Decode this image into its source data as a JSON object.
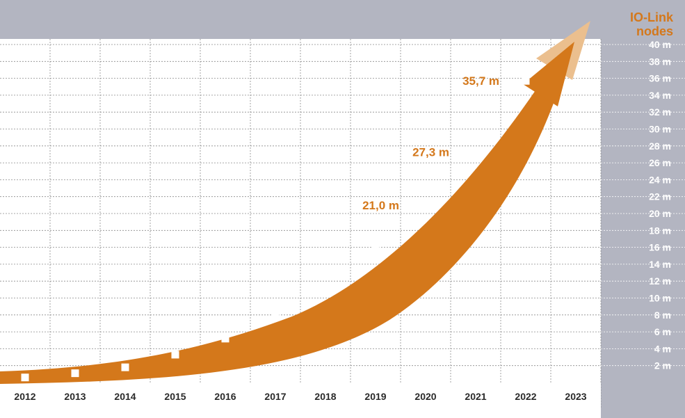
{
  "chart_data": {
    "type": "line",
    "title_lines": [
      "IO-Link",
      "nodes"
    ],
    "x": [
      "2012",
      "2013",
      "2014",
      "2015",
      "2016",
      "2017",
      "2018",
      "2019",
      "2020",
      "2021",
      "2022",
      "2023"
    ],
    "ylim": [
      0,
      40
    ],
    "y_ticks": [
      "2 m",
      "4 m",
      "6 m",
      "8 m",
      "10 m",
      "12 m",
      "14 m",
      "16 m",
      "18 m",
      "20 m",
      "22 m",
      "24 m",
      "26 m",
      "28 m",
      "30 m",
      "32 m",
      "34 m",
      "36 m",
      "38 m",
      "40 m"
    ],
    "series": [
      {
        "points": [
          {
            "x": "2012",
            "y": 0.6
          },
          {
            "x": "2013",
            "y": 1.1
          },
          {
            "x": "2014",
            "y": 1.8
          },
          {
            "x": "2015",
            "y": 3.3
          },
          {
            "x": "2016",
            "y": 5.2
          },
          {
            "x": "2017",
            "y": 8.1
          },
          {
            "x": "2018",
            "y": 11.3
          },
          {
            "x": "2019",
            "y": 16.1
          },
          {
            "x": "2020",
            "y": 21.0
          },
          {
            "x": "2021",
            "y": 27.3
          },
          {
            "x": "2022",
            "y": 35.7
          }
        ]
      }
    ],
    "annotations": [
      {
        "x": "2020",
        "y": 21.0,
        "text": "21,0 m"
      },
      {
        "x": "2021",
        "y": 27.3,
        "text": "27,3 m"
      },
      {
        "x": "2022",
        "y": 35.7,
        "text": "35,7 m"
      }
    ],
    "grid": true,
    "colors": {
      "arrow": "#d4781b",
      "arrow_light": "#ebbf8e",
      "panel": "#b3b5c1",
      "grid": "#8a8a8a",
      "label": "#d4781b",
      "marker": "#ffffff"
    }
  }
}
